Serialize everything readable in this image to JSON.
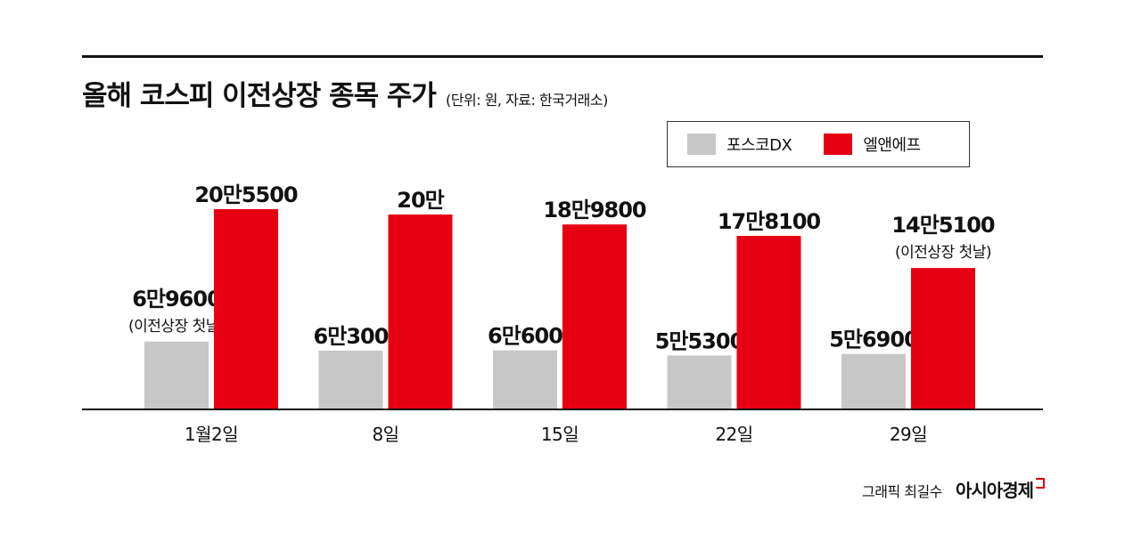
{
  "header": {
    "title": "올해 코스피 이전상장 종목 주가",
    "subtitle": "(단위: 원, 자료: 한국거래소)"
  },
  "legend": {
    "items": [
      {
        "label": "포스코DX",
        "color": "#c7c7c7"
      },
      {
        "label": "엘앤에프",
        "color": "#e60012"
      }
    ]
  },
  "chart_data": {
    "type": "bar",
    "title": "올해 코스피 이전상장 종목 주가",
    "subtitle": "(단위: 원, 자료: 한국거래소)",
    "categories": [
      "1월2일",
      "8일",
      "15일",
      "22일",
      "29일"
    ],
    "series": [
      {
        "name": "포스코DX",
        "color": "#c7c7c7",
        "values": [
          69600,
          60300,
          60600,
          55300,
          56900
        ],
        "labels": [
          "6만9600",
          "6만300",
          "6만600",
          "5만5300",
          "5만6900"
        ]
      },
      {
        "name": "엘앤에프",
        "color": "#e60012",
        "values": [
          205500,
          200000,
          189800,
          178100,
          145100
        ],
        "labels": [
          "20만5500",
          "20만",
          "18만9800",
          "17만8100",
          "14만5100"
        ]
      }
    ],
    "annotations": [
      {
        "series": "포스코DX",
        "category": "1월2일",
        "text": "(이전상장 첫날)"
      },
      {
        "series": "엘앤에프",
        "category": "29일",
        "text": "(이전상장 첫날)"
      }
    ],
    "ylim": [
      0,
      205500
    ],
    "grid": false,
    "legend_position": "top-right"
  },
  "footer": {
    "credit": "그래픽 최길수",
    "brand": "아시아경제"
  }
}
